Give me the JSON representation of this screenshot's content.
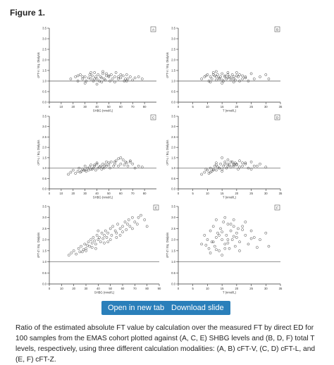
{
  "figure_title": "Figure 1.",
  "buttons": {
    "open_new_tab": "Open in new tab",
    "download_slide": "Download slide"
  },
  "caption": "Ratio of the estimated absolute FT value by calculation over the measured FT by direct ED for 100 samples from the EMAS cohort plotted against (A, C, E) SHBG levels and (B, D, F) total T levels, respectively, using three different calculation modalities: (A, B) cFT-V, (C, D) cFT-L, and (E, F) cFT-Z.",
  "chart_data": [
    {
      "type": "scatter",
      "panel": "A",
      "xlabel": "SHBG (nmol/L)",
      "ylabel": "cFT-V / Eq. Dialysis",
      "xlim": [
        0,
        90
      ],
      "ylim": [
        0,
        3.5
      ],
      "reference_y": 1.0,
      "xticks": [
        0,
        10,
        20,
        30,
        40,
        50,
        60,
        70,
        80
      ],
      "yticks": [
        0.0,
        0.5,
        1.0,
        1.5,
        2.0,
        2.5,
        3.0,
        3.5
      ],
      "x": [
        18,
        22,
        24,
        26,
        28,
        30,
        31,
        33,
        34,
        35,
        36,
        37,
        38,
        39,
        40,
        41,
        42,
        43,
        44,
        45,
        46,
        47,
        48,
        50,
        51,
        52,
        53,
        55,
        56,
        58,
        60,
        62,
        63,
        65,
        66,
        68,
        70,
        72,
        75,
        78,
        30,
        35,
        40,
        45,
        50,
        55,
        60,
        65,
        28,
        38,
        48,
        58,
        24,
        44,
        64
      ],
      "y": [
        1.1,
        1.2,
        1.0,
        1.3,
        1.1,
        1.2,
        1.0,
        1.15,
        1.3,
        1.1,
        1.25,
        1.0,
        1.4,
        1.2,
        1.1,
        1.3,
        1.0,
        1.2,
        1.15,
        1.35,
        1.1,
        1.05,
        1.25,
        1.2,
        1.0,
        1.3,
        1.1,
        1.2,
        1.4,
        1.1,
        1.15,
        1.25,
        1.0,
        1.3,
        1.1,
        1.2,
        1.05,
        1.15,
        1.2,
        1.1,
        0.9,
        1.4,
        0.85,
        1.45,
        1.25,
        0.95,
        1.3,
        1.0,
        1.2,
        1.1,
        1.35,
        1.2,
        1.25,
        0.95,
        1.1
      ]
    },
    {
      "type": "scatter",
      "panel": "B",
      "xlabel": "T (nmol/L)",
      "ylabel": "cFT-V / Eq. Dialysis",
      "xlim": [
        0,
        35
      ],
      "ylim": [
        0,
        3.5
      ],
      "reference_y": 1.0,
      "xticks": [
        0,
        5,
        10,
        15,
        20,
        25,
        30,
        35
      ],
      "yticks": [
        0.0,
        0.5,
        1.0,
        1.5,
        2.0,
        2.5,
        3.0,
        3.5
      ],
      "x": [
        8,
        9,
        10,
        10.5,
        11,
        11.5,
        12,
        12.5,
        13,
        13.5,
        14,
        14.5,
        15,
        15.5,
        16,
        16.5,
        17,
        17.5,
        18,
        18.5,
        19,
        19.5,
        20,
        20.5,
        21,
        22,
        23,
        24,
        25,
        26,
        28,
        30,
        31,
        11,
        13,
        15,
        17,
        19,
        21,
        14,
        16,
        18,
        12,
        20,
        23,
        9.5,
        15,
        17,
        22,
        13,
        19
      ],
      "y": [
        1.1,
        1.2,
        1.3,
        1.0,
        1.2,
        1.1,
        1.4,
        1.25,
        1.05,
        1.3,
        1.15,
        1.2,
        1.35,
        1.0,
        1.25,
        1.1,
        1.4,
        1.2,
        1.15,
        1.3,
        1.1,
        1.05,
        1.25,
        1.2,
        1.3,
        1.1,
        1.2,
        1.0,
        1.35,
        1.1,
        1.2,
        1.3,
        1.1,
        0.95,
        1.45,
        0.9,
        1.3,
        1.2,
        1.0,
        1.1,
        1.2,
        1.05,
        1.3,
        1.4,
        1.15,
        1.25,
        1.05,
        1.15,
        1.25,
        1.2,
        0.95
      ]
    },
    {
      "type": "scatter",
      "panel": "C",
      "xlabel": "SHBG (nmol/L)",
      "ylabel": "cFT-L / Eq. Dialysis",
      "xlim": [
        0,
        90
      ],
      "ylim": [
        0,
        3.5
      ],
      "reference_y": 1.0,
      "xticks": [
        0,
        10,
        20,
        30,
        40,
        50,
        60,
        70,
        80
      ],
      "yticks": [
        0.0,
        0.5,
        1.0,
        1.5,
        2.0,
        2.5,
        3.0,
        3.5
      ],
      "x": [
        16,
        18,
        20,
        22,
        24,
        25,
        26,
        28,
        29,
        30,
        31,
        32,
        33,
        34,
        35,
        36,
        37,
        38,
        39,
        40,
        41,
        42,
        43,
        44,
        45,
        46,
        47,
        48,
        50,
        51,
        52,
        54,
        55,
        56,
        58,
        60,
        62,
        63,
        64,
        65,
        66,
        68,
        70,
        72,
        75,
        78,
        30,
        35,
        40,
        45,
        50,
        55,
        60,
        27,
        38,
        48,
        58,
        68
      ],
      "y": [
        0.7,
        0.8,
        0.9,
        0.75,
        0.85,
        1.0,
        0.8,
        0.95,
        0.9,
        1.1,
        0.85,
        1.0,
        0.9,
        1.05,
        1.15,
        0.95,
        1.0,
        1.1,
        0.9,
        1.2,
        1.0,
        1.05,
        1.1,
        0.95,
        1.2,
        1.0,
        1.15,
        1.1,
        1.25,
        1.0,
        1.3,
        1.1,
        1.2,
        1.35,
        1.1,
        1.2,
        1.4,
        1.15,
        1.3,
        1.25,
        1.1,
        1.3,
        1.2,
        1.0,
        1.1,
        1.05,
        0.9,
        0.95,
        1.25,
        1.05,
        1.15,
        1.3,
        1.5,
        0.85,
        1.15,
        1.3,
        1.45,
        1.35
      ]
    },
    {
      "type": "scatter",
      "panel": "D",
      "xlabel": "T (nmol/L)",
      "ylabel": "cFT-L / Eq. Dialysis",
      "xlim": [
        0,
        35
      ],
      "ylim": [
        0,
        3.5
      ],
      "reference_y": 1.0,
      "xticks": [
        0,
        5,
        10,
        15,
        20,
        25,
        30,
        35
      ],
      "yticks": [
        0.0,
        0.5,
        1.0,
        1.5,
        2.0,
        2.5,
        3.0,
        3.5
      ],
      "x": [
        8,
        9,
        10,
        10.5,
        11,
        11.5,
        12,
        12.5,
        13,
        13.5,
        14,
        14.5,
        15,
        15.5,
        16,
        16.5,
        17,
        17.5,
        18,
        18.5,
        19,
        19.5,
        20,
        20.5,
        21,
        22,
        23,
        24,
        25,
        26,
        28,
        30,
        11,
        13,
        15,
        17,
        19,
        21,
        14,
        16,
        18,
        12,
        20,
        23,
        9.5,
        15,
        17,
        22,
        13,
        19,
        25,
        27
      ],
      "y": [
        0.7,
        0.8,
        0.9,
        0.75,
        1.0,
        0.85,
        0.95,
        1.1,
        0.9,
        1.05,
        1.0,
        1.2,
        0.95,
        1.1,
        1.3,
        1.0,
        1.2,
        1.15,
        1.05,
        1.3,
        1.1,
        1.25,
        1.2,
        0.95,
        1.35,
        1.1,
        1.2,
        1.0,
        1.3,
        1.1,
        1.2,
        1.05,
        0.8,
        1.25,
        0.85,
        1.4,
        1.15,
        1.05,
        1.0,
        1.2,
        1.3,
        0.9,
        1.15,
        1.25,
        0.95,
        1.5,
        1.1,
        1.25,
        1.15,
        1.2,
        0.95,
        1.1
      ]
    },
    {
      "type": "scatter",
      "panel": "E",
      "xlabel": "SHBG (nmol/L)",
      "ylabel": "cFT-Z / Eq. Dialysis",
      "xlim": [
        0,
        90
      ],
      "ylim": [
        0,
        3.5
      ],
      "reference_y": 1.0,
      "xticks": [
        0,
        10,
        20,
        30,
        40,
        50,
        60,
        70,
        80,
        90
      ],
      "yticks": [
        0.0,
        0.5,
        1.0,
        1.5,
        2.0,
        2.5,
        3.0,
        3.5
      ],
      "x": [
        16,
        18,
        20,
        22,
        24,
        25,
        26,
        28,
        29,
        30,
        31,
        32,
        33,
        34,
        35,
        36,
        37,
        38,
        39,
        40,
        41,
        42,
        43,
        44,
        45,
        46,
        47,
        48,
        50,
        51,
        52,
        54,
        55,
        56,
        58,
        60,
        62,
        63,
        64,
        65,
        66,
        68,
        70,
        72,
        75,
        78,
        80,
        30,
        35,
        40,
        45,
        50,
        55,
        60,
        27,
        38,
        48,
        58,
        68,
        73
      ],
      "y": [
        1.3,
        1.4,
        1.5,
        1.35,
        1.6,
        1.45,
        1.7,
        1.55,
        1.8,
        1.6,
        1.75,
        1.9,
        1.7,
        2.0,
        1.85,
        2.1,
        1.95,
        1.8,
        2.2,
        2.0,
        2.1,
        1.9,
        2.3,
        2.05,
        2.2,
        2.4,
        2.1,
        2.3,
        2.5,
        2.2,
        2.6,
        2.4,
        2.3,
        2.7,
        2.5,
        2.6,
        2.8,
        2.45,
        2.7,
        2.9,
        2.6,
        3.0,
        2.8,
        2.7,
        3.1,
        2.9,
        2.6,
        1.5,
        1.65,
        2.4,
        1.85,
        2.0,
        2.1,
        2.35,
        1.45,
        1.6,
        1.9,
        2.2,
        2.5,
        3.0
      ]
    },
    {
      "type": "scatter",
      "panel": "F",
      "xlabel": "T (nmol/L)",
      "ylabel": "cFT-Z / Eq. Dialysis",
      "xlim": [
        0,
        35
      ],
      "ylim": [
        0,
        3.5
      ],
      "reference_y": 1.0,
      "xticks": [
        0,
        5,
        10,
        15,
        20,
        25,
        30,
        35
      ],
      "yticks": [
        0.0,
        0.5,
        1.0,
        1.5,
        2.0,
        2.5,
        3.0,
        3.5
      ],
      "x": [
        8,
        9,
        10,
        10.5,
        11,
        11.5,
        12,
        12.5,
        13,
        13.5,
        14,
        14.5,
        15,
        15.5,
        16,
        16.5,
        17,
        17.5,
        18,
        18.5,
        19,
        19.5,
        20,
        20.5,
        21,
        22,
        23,
        24,
        25,
        26,
        28,
        30,
        31,
        11,
        13,
        15,
        17,
        19,
        21,
        14,
        16,
        18,
        12,
        20,
        23,
        9.5,
        15,
        17,
        22,
        13,
        19,
        25,
        27,
        16
      ],
      "y": [
        1.8,
        2.2,
        2.0,
        1.6,
        2.4,
        1.9,
        2.6,
        1.7,
        2.1,
        2.3,
        1.5,
        2.5,
        2.0,
        2.8,
        1.8,
        2.2,
        2.7,
        1.6,
        2.4,
        2.0,
        2.9,
        1.7,
        2.3,
        2.5,
        1.9,
        2.6,
        2.2,
        1.8,
        2.4,
        2.1,
        2.0,
        2.3,
        1.7,
        1.4,
        2.9,
        1.3,
        2.0,
        2.6,
        1.5,
        2.2,
        1.6,
        2.7,
        1.9,
        2.1,
        2.8,
        1.75,
        2.35,
        1.85,
        2.45,
        1.55,
        2.15,
        2.05,
        1.65,
        3.0
      ]
    }
  ]
}
